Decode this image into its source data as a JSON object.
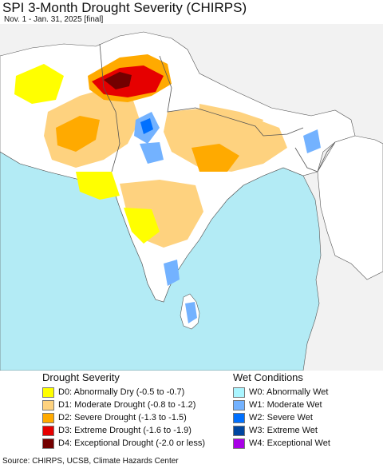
{
  "title": "SPI 3-Month Drought Severity (CHIRPS)",
  "subtitle": "Nov. 1 - Jan. 31, 2025 [final]",
  "colors": {
    "ocean": "#b3ebf5",
    "land": "#ffffff",
    "outside": "#f2f2f2",
    "border": "#555555",
    "D0": "#ffff00",
    "D1": "#fed27f",
    "D2": "#ffaa00",
    "D3": "#e60000",
    "D4": "#730000",
    "W0": "#aaf5ff",
    "W1": "#73b2ff",
    "W2": "#0070ff",
    "W3": "#0046a0",
    "W4": "#a800e6"
  },
  "legend": {
    "drought_heading": "Drought Severity",
    "drought_items": [
      {
        "code": "D0",
        "label": "D0: Abnormally Dry (-0.5 to -0.7)"
      },
      {
        "code": "D1",
        "label": "D1: Moderate Drought (-0.8 to -1.2)"
      },
      {
        "code": "D2",
        "label": "D2: Severe Drought (-1.3 to -1.5)"
      },
      {
        "code": "D3",
        "label": "D3: Extreme Drought (-1.6 to -1.9)"
      },
      {
        "code": "D4",
        "label": "D4: Exceptional Drought (-2.0 or less)"
      }
    ],
    "wet_heading": "Wet Conditions",
    "wet_items": [
      {
        "code": "W0",
        "label": "W0: Abnormally Wet"
      },
      {
        "code": "W1",
        "label": "W1: Moderate Wet"
      },
      {
        "code": "W2",
        "label": "W2: Severe Wet"
      },
      {
        "code": "W3",
        "label": "W3: Extreme Wet"
      },
      {
        "code": "W4",
        "label": "W4: Exceptional Wet"
      }
    ]
  },
  "source": "Source: CHIRPS, UCSB, Climate Hazards Center"
}
